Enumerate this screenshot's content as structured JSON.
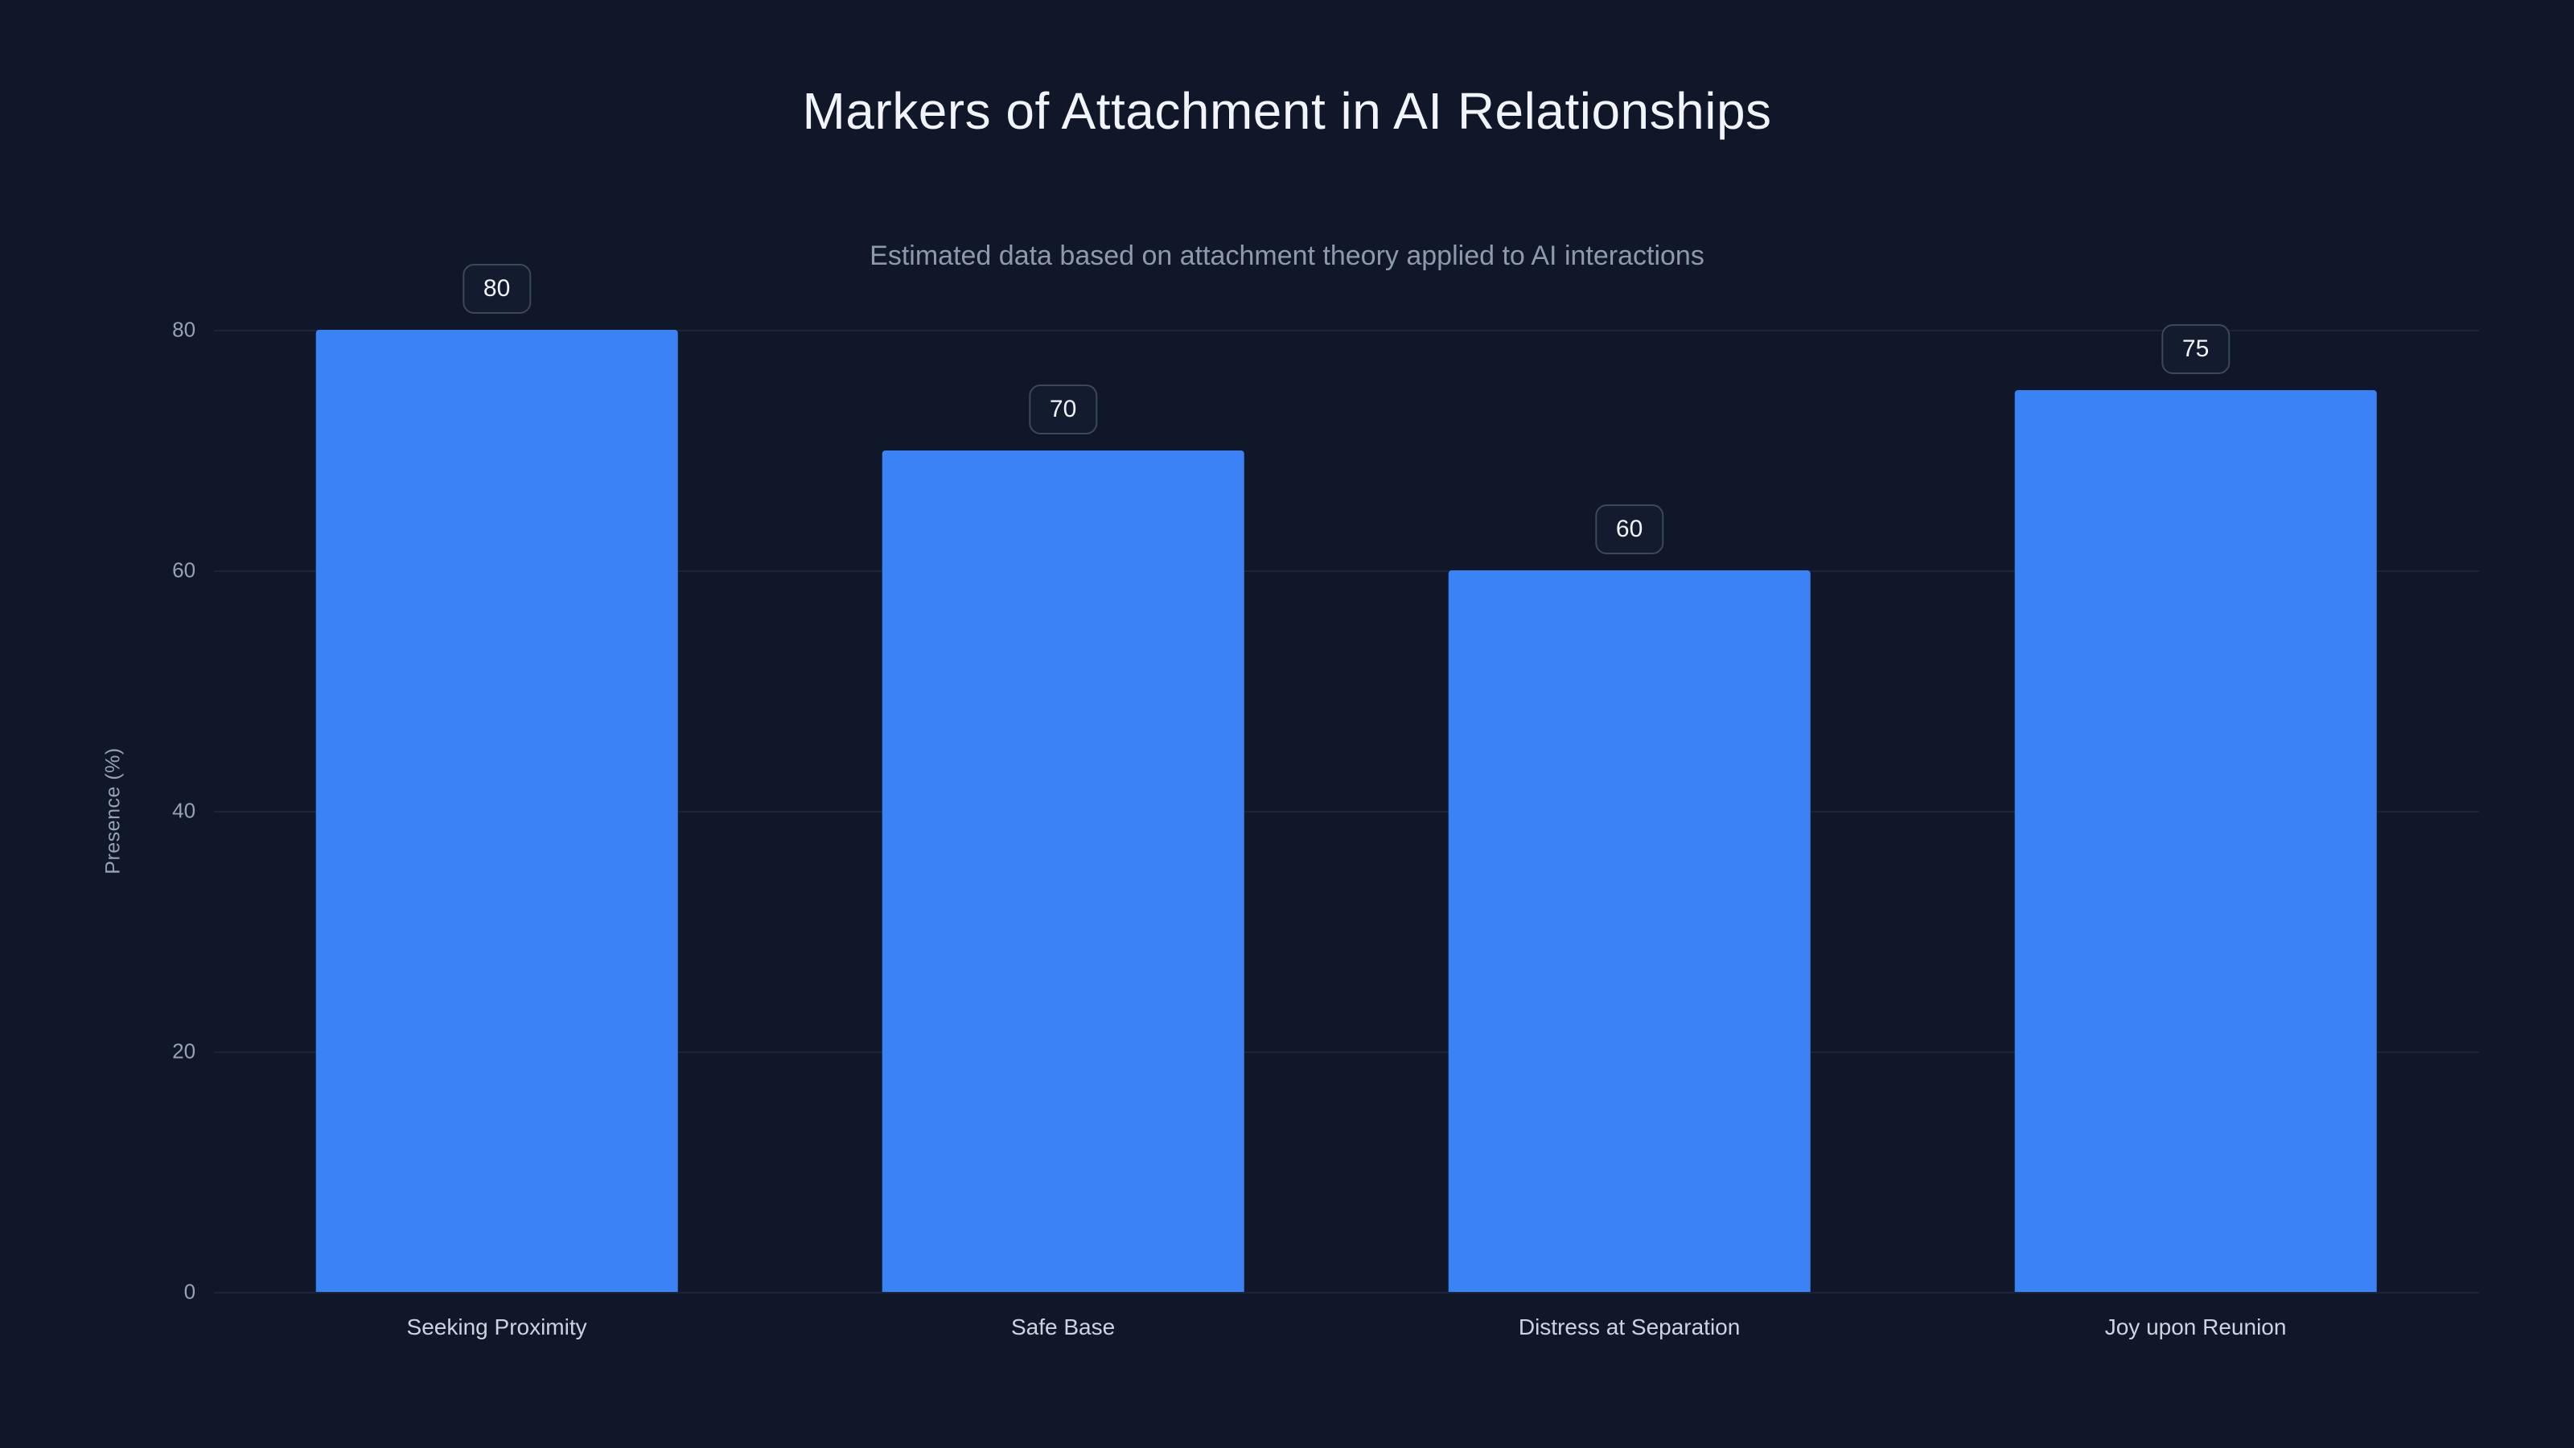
{
  "chart_data": {
    "type": "bar",
    "title": "Markers of Attachment in AI Relationships",
    "subtitle": "Estimated data based on attachment theory applied to AI interactions",
    "categories": [
      "Seeking Proximity",
      "Safe Base",
      "Distress at Separation",
      "Joy upon Reunion"
    ],
    "values": [
      80,
      70,
      60,
      75
    ],
    "xlabel": "",
    "ylabel": "Presence (%)",
    "ylim": [
      0,
      80
    ],
    "yticks": [
      0,
      20,
      40,
      60,
      80
    ],
    "grid": "horizontal",
    "legend": "none",
    "bar_color": "#3b82f6",
    "background_color": "#0f1729"
  }
}
